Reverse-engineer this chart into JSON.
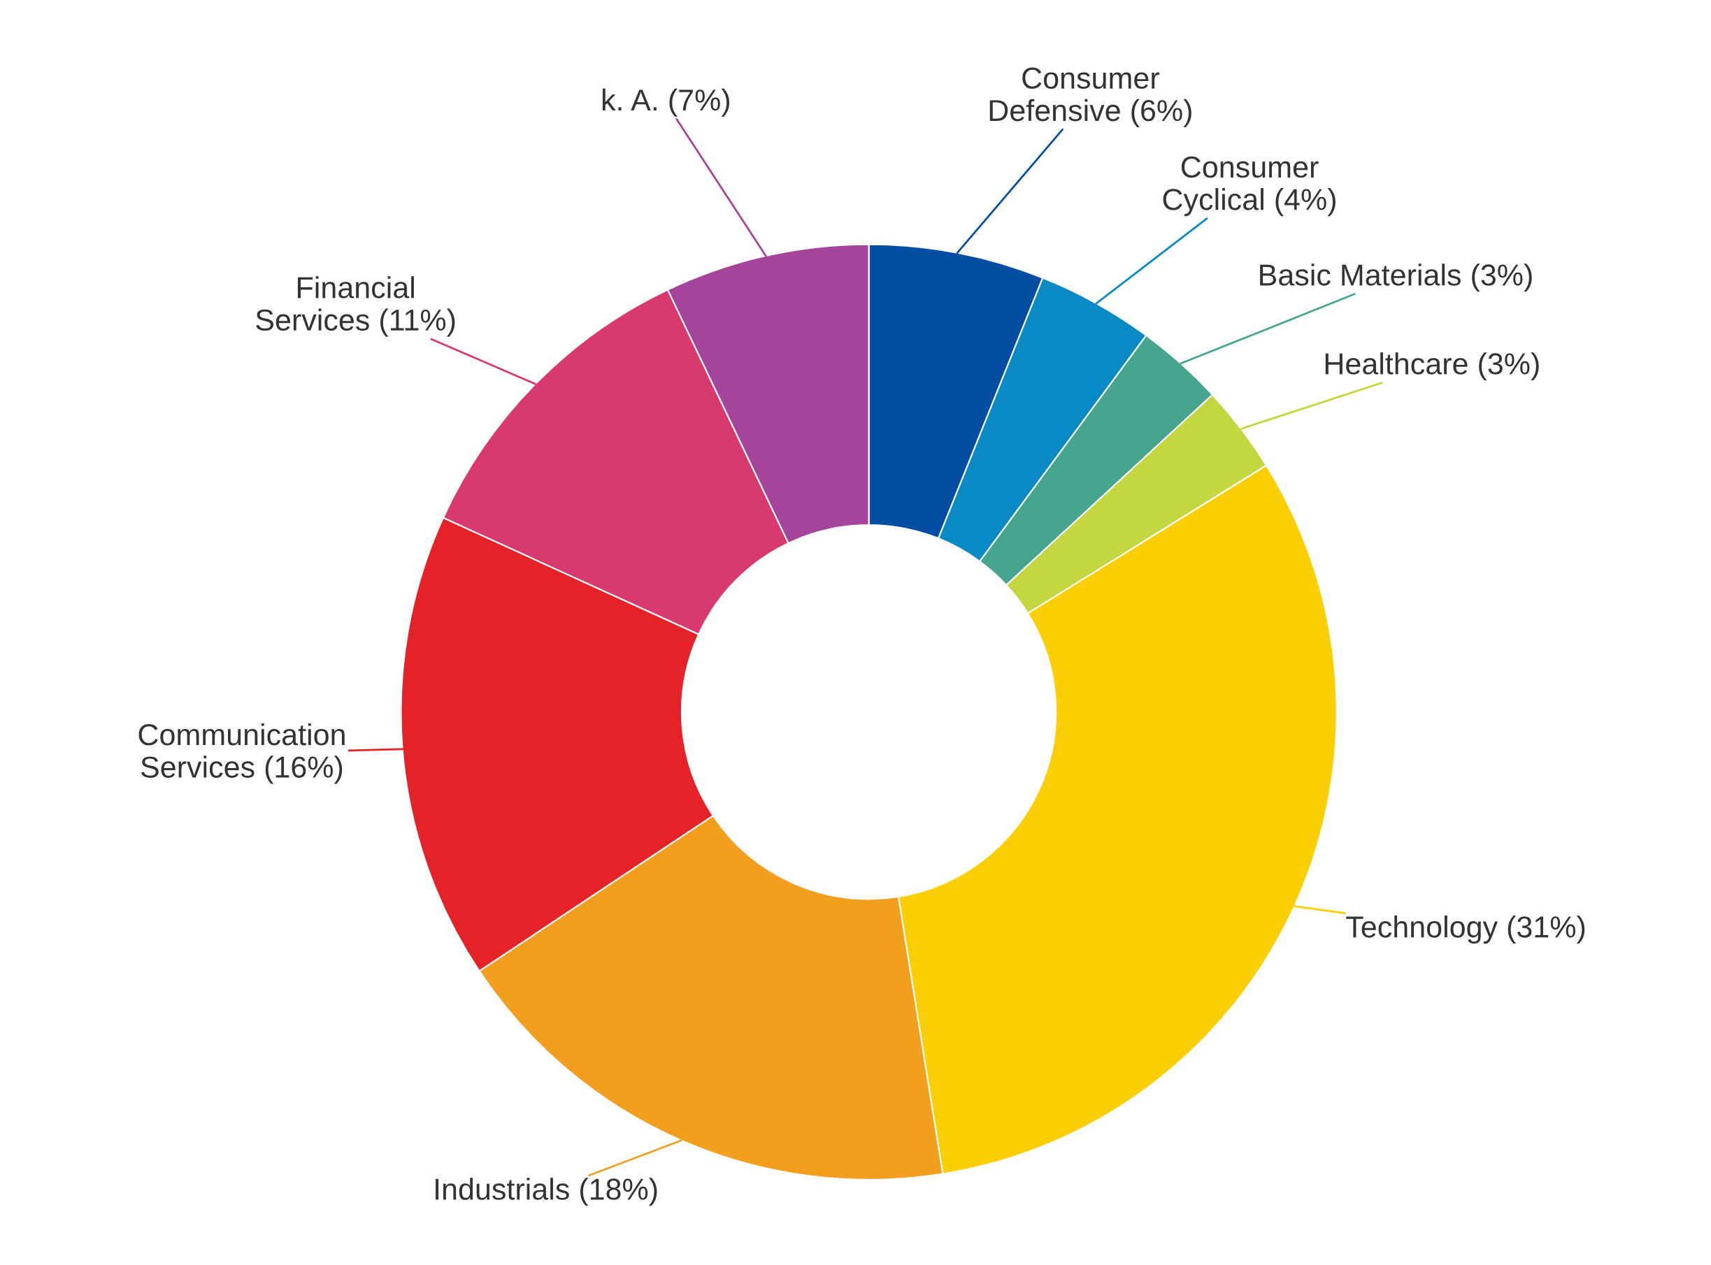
{
  "chart_data": {
    "type": "donut",
    "categories": [
      "Consumer Defensive",
      "Consumer Cyclical",
      "Basic Materials",
      "Healthcare",
      "Technology",
      "Industrials",
      "Communication Services",
      "Financial Services",
      "k. A."
    ],
    "values": [
      6,
      4,
      3,
      3,
      31,
      18,
      16,
      11,
      7
    ],
    "value_labels": [
      "(6%)",
      "(4%)",
      "(3%)",
      "(3%)",
      "(31%)",
      "(18%)",
      "(16%)",
      "(11%)",
      "(7%)"
    ],
    "colors": [
      "#034ea2",
      "#0a8ac4",
      "#45a58e",
      "#c4d640",
      "#fbcf04",
      "#f29e1f",
      "#e42228",
      "#d8396e",
      "#a5449b"
    ],
    "legend": false
  }
}
